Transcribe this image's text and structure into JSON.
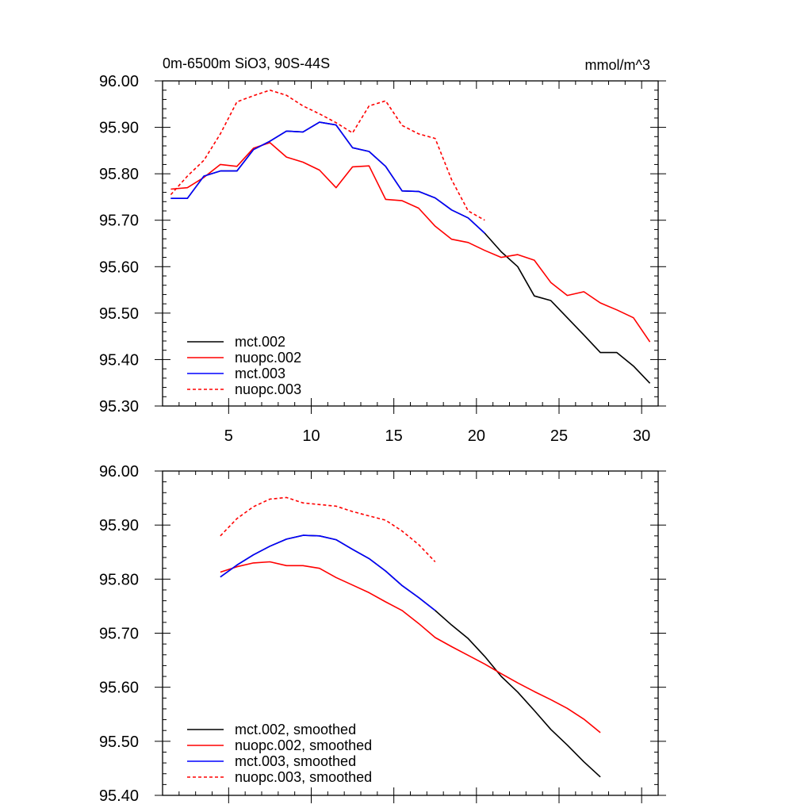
{
  "chart_data": [
    {
      "type": "line",
      "title_left": "0m-6500m SiO3, 90S-44S",
      "title_right": "mmol/m^3",
      "xlim": [
        1,
        31
      ],
      "ylim": [
        95.3,
        96.0
      ],
      "xticks": [
        5,
        10,
        15,
        20,
        25,
        30
      ],
      "xtick_labels": [
        "5",
        "10",
        "15",
        "20",
        "25",
        "30"
      ],
      "yticks": [
        95.3,
        95.4,
        95.5,
        95.6,
        95.7,
        95.8,
        95.9,
        96.0
      ],
      "ytick_labels": [
        "95.30",
        "95.40",
        "95.50",
        "95.60",
        "95.70",
        "95.80",
        "95.90",
        "96.00"
      ],
      "legend_position": "bottom-left",
      "series": [
        {
          "name": "mct.002",
          "color": "#000000",
          "dash": "solid",
          "x": [
            1.5,
            2.5,
            3.5,
            4.5,
            5.5,
            6.5,
            7.5,
            8.5,
            9.5,
            10.5,
            11.5,
            12.5,
            13.5,
            14.5,
            15.5,
            16.5,
            17.5,
            18.5,
            19.5,
            20.5,
            21.5,
            22.5,
            23.5,
            24.5,
            25.5,
            26.5,
            27.5,
            28.5,
            29.5,
            30.5
          ],
          "y": [
            95.747,
            95.747,
            95.795,
            95.806,
            95.806,
            95.852,
            95.87,
            95.892,
            95.89,
            95.911,
            95.905,
            95.856,
            95.848,
            95.816,
            95.763,
            95.762,
            95.748,
            95.722,
            95.705,
            95.672,
            95.632,
            95.6,
            95.537,
            95.527,
            95.49,
            95.453,
            95.415,
            95.415,
            95.386,
            95.349
          ]
        },
        {
          "name": "nuopc.002",
          "color": "#ff0000",
          "dash": "solid",
          "x": [
            1.5,
            2.5,
            3.5,
            4.5,
            5.5,
            6.5,
            7.5,
            8.5,
            9.5,
            10.5,
            11.5,
            12.5,
            13.5,
            14.5,
            15.5,
            16.5,
            17.5,
            18.5,
            19.5,
            20.5,
            21.5,
            22.5,
            23.5,
            24.5,
            25.5,
            26.5,
            27.5,
            28.5,
            29.5,
            30.5
          ],
          "y": [
            95.767,
            95.77,
            95.792,
            95.82,
            95.816,
            95.855,
            95.867,
            95.836,
            95.825,
            95.808,
            95.77,
            95.815,
            95.817,
            95.745,
            95.742,
            95.726,
            95.687,
            95.659,
            95.652,
            95.635,
            95.62,
            95.626,
            95.614,
            95.566,
            95.538,
            95.546,
            95.522,
            95.507,
            95.49,
            95.438
          ]
        },
        {
          "name": "mct.003",
          "color": "#0000ff",
          "dash": "solid",
          "x": [
            1.5,
            2.5,
            3.5,
            4.5,
            5.5,
            6.5,
            7.5,
            8.5,
            9.5,
            10.5,
            11.5,
            12.5,
            13.5,
            14.5,
            15.5,
            16.5,
            17.5,
            18.5,
            19.5,
            20.5
          ],
          "y": [
            95.747,
            95.747,
            95.795,
            95.806,
            95.806,
            95.852,
            95.87,
            95.892,
            95.89,
            95.911,
            95.905,
            95.856,
            95.848,
            95.816,
            95.763,
            95.762,
            95.748,
            95.722,
            95.705,
            95.672
          ]
        },
        {
          "name": "nuopc.003",
          "color": "#ff0000",
          "dash": "dashed",
          "x": [
            1.5,
            2.5,
            3.5,
            4.5,
            5.5,
            6.5,
            7.5,
            8.5,
            9.5,
            10.5,
            11.5,
            12.5,
            13.5,
            14.5,
            15.5,
            16.5,
            17.5,
            18.5,
            19.5,
            20.5
          ],
          "y": [
            95.755,
            95.795,
            95.829,
            95.886,
            95.955,
            95.968,
            95.98,
            95.969,
            95.946,
            95.929,
            95.91,
            95.888,
            95.946,
            95.957,
            95.904,
            95.886,
            95.876,
            95.787,
            95.72,
            95.7
          ]
        }
      ]
    },
    {
      "type": "line",
      "xlim": [
        1,
        31
      ],
      "ylim": [
        95.4,
        96.0
      ],
      "xticks": [
        5,
        10,
        15,
        20,
        25,
        30
      ],
      "yticks": [
        95.4,
        95.5,
        95.6,
        95.7,
        95.8,
        95.9,
        96.0
      ],
      "ytick_labels": [
        "95.40",
        "95.50",
        "95.60",
        "95.70",
        "95.80",
        "95.90",
        "96.00"
      ],
      "legend_position": "bottom-left",
      "series": [
        {
          "name": "mct.002, smoothed",
          "color": "#000000",
          "dash": "solid",
          "x": [
            4.5,
            5.5,
            6.5,
            7.5,
            8.5,
            9.5,
            10.5,
            11.5,
            12.5,
            13.5,
            14.5,
            15.5,
            16.5,
            17.5,
            18.5,
            19.5,
            20.5,
            21.5,
            22.5,
            23.5,
            24.5,
            25.5,
            26.5,
            27.5
          ],
          "y": [
            95.804,
            95.826,
            95.845,
            95.861,
            95.874,
            95.881,
            95.88,
            95.873,
            95.855,
            95.838,
            95.815,
            95.788,
            95.766,
            95.742,
            95.715,
            95.69,
            95.657,
            95.62,
            95.591,
            95.557,
            95.522,
            95.493,
            95.462,
            95.434
          ]
        },
        {
          "name": "nuopc.002, smoothed",
          "color": "#ff0000",
          "dash": "solid",
          "x": [
            4.5,
            5.5,
            6.5,
            7.5,
            8.5,
            9.5,
            10.5,
            11.5,
            12.5,
            13.5,
            14.5,
            15.5,
            16.5,
            17.5,
            18.5,
            19.5,
            20.5,
            21.5,
            22.5,
            23.5,
            24.5,
            25.5,
            26.5,
            27.5
          ],
          "y": [
            95.813,
            95.823,
            95.83,
            95.832,
            95.825,
            95.825,
            95.82,
            95.803,
            95.789,
            95.775,
            95.758,
            95.742,
            95.718,
            95.692,
            95.675,
            95.659,
            95.643,
            95.625,
            95.608,
            95.592,
            95.577,
            95.561,
            95.541,
            95.516
          ]
        },
        {
          "name": "mct.003, smoothed",
          "color": "#0000ff",
          "dash": "solid",
          "x": [
            4.5,
            5.5,
            6.5,
            7.5,
            8.5,
            9.5,
            10.5,
            11.5,
            12.5,
            13.5,
            14.5,
            15.5,
            16.5,
            17.5
          ],
          "y": [
            95.804,
            95.826,
            95.845,
            95.861,
            95.874,
            95.881,
            95.88,
            95.873,
            95.855,
            95.838,
            95.815,
            95.788,
            95.766,
            95.742
          ]
        },
        {
          "name": "nuopc.003, smoothed",
          "color": "#ff0000",
          "dash": "dashed",
          "x": [
            4.5,
            5.5,
            6.5,
            7.5,
            8.5,
            9.5,
            10.5,
            11.5,
            12.5,
            13.5,
            14.5,
            15.5,
            16.5,
            17.5
          ],
          "y": [
            95.88,
            95.912,
            95.934,
            95.948,
            95.951,
            95.941,
            95.938,
            95.935,
            95.925,
            95.917,
            95.909,
            95.889,
            95.864,
            95.832
          ]
        }
      ]
    }
  ]
}
